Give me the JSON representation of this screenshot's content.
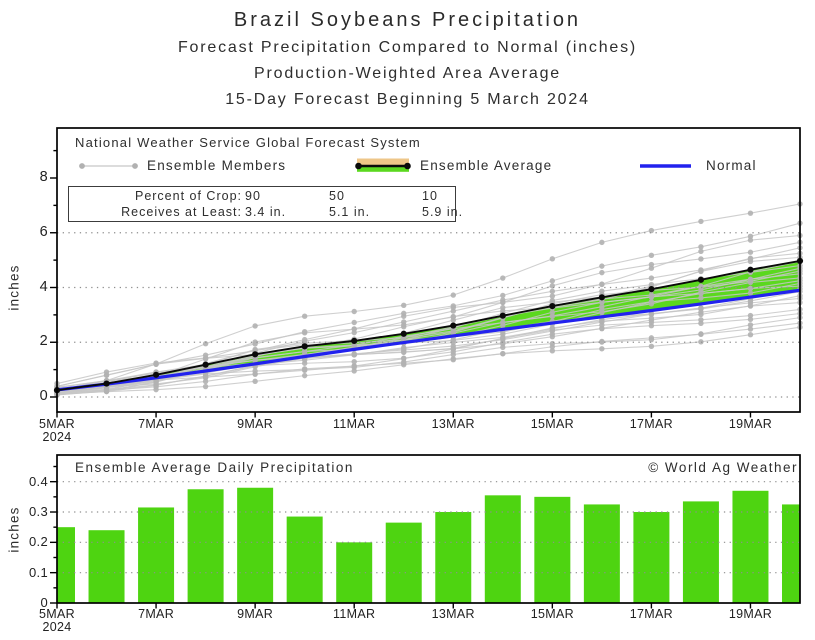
{
  "header": {
    "title": "Brazil Soybeans Precipitation",
    "subtitle1": "Forecast Precipitation Compared to Normal (inches)",
    "subtitle2": "Production-Weighted Area Average",
    "subtitle3": "15-Day Forecast Beginning 5 March 2024"
  },
  "top_chart": {
    "legend": {
      "source": "National Weather Service Global Forecast System",
      "members_label": "Ensemble Members",
      "average_label": "Ensemble Average",
      "normal_label": "Normal"
    },
    "crop_box": {
      "row1_label": "Percent of Crop:",
      "row1_values": [
        "90",
        "50",
        "10"
      ],
      "row2_label": "Receives at Least:",
      "row2_values": [
        "3.4 in.",
        "5.1 in.",
        "5.9 in."
      ]
    },
    "ylabel": "inches"
  },
  "bottom_chart": {
    "title": "Ensemble Average Daily Precipitation",
    "copyright": "© World Ag Weather",
    "ylabel": "inches"
  },
  "colors": {
    "bar_green": "#4ed411",
    "band_green": "#5bd81f",
    "normal_blue": "#2222ee",
    "average_black": "#0a0a0a",
    "member_line_gray": "#c7c7c7",
    "member_dot_gray": "#b1b1b1",
    "legend_tan": "#eec688",
    "grid_gray": "#8f8f8f",
    "axis_black": "#000000"
  },
  "chart_data": [
    {
      "type": "line",
      "title": "Forecast cumulative precipitation compared to normal (inches)",
      "x": [
        "5MAR",
        "6MAR",
        "7MAR",
        "8MAR",
        "9MAR",
        "10MAR",
        "11MAR",
        "12MAR",
        "13MAR",
        "14MAR",
        "15MAR",
        "16MAR",
        "17MAR",
        "18MAR",
        "19MAR",
        "20MAR"
      ],
      "x_tick_labels": [
        "5MAR",
        "7MAR",
        "9MAR",
        "11MAR",
        "13MAR",
        "15MAR",
        "17MAR",
        "19MAR"
      ],
      "x_tick_year": "2024",
      "ylabel": "inches",
      "ylim": [
        -0.55,
        9.8
      ],
      "yticks": [
        0,
        2,
        4,
        6,
        8
      ],
      "yticks_minor": [
        1,
        3,
        5,
        7,
        9
      ],
      "grid": "dotted horizontal at 0,2,4,6",
      "grid_values": [
        0,
        2,
        4,
        6
      ],
      "legend_position": "top-inside",
      "series": [
        {
          "name": "Ensemble Average",
          "values": [
            0.25,
            0.49,
            0.81,
            1.18,
            1.56,
            1.85,
            2.05,
            2.31,
            2.61,
            2.97,
            3.32,
            3.64,
            3.94,
            4.28,
            4.65,
            4.97
          ]
        },
        {
          "name": "Normal",
          "values": [
            0.26,
            0.47,
            0.7,
            0.95,
            1.21,
            1.48,
            1.74,
            1.99,
            2.23,
            2.47,
            2.7,
            2.93,
            3.16,
            3.4,
            3.65,
            3.9
          ]
        }
      ],
      "ensemble_members": {
        "count": 26,
        "start_value": 0.25,
        "final_values": [
          2.55,
          2.7,
          2.9,
          3.05,
          3.2,
          3.45,
          3.6,
          3.7,
          3.85,
          3.95,
          4.05,
          4.15,
          4.25,
          4.35,
          4.5,
          4.6,
          4.7,
          4.8,
          4.95,
          5.1,
          5.25,
          5.45,
          5.65,
          5.9,
          6.35,
          7.05
        ]
      }
    },
    {
      "type": "bar",
      "title": "Ensemble Average Daily Precipitation",
      "categories": [
        "5MAR",
        "6MAR",
        "7MAR",
        "8MAR",
        "9MAR",
        "10MAR",
        "11MAR",
        "12MAR",
        "13MAR",
        "14MAR",
        "15MAR",
        "16MAR",
        "17MAR",
        "18MAR",
        "19MAR",
        "20MAR"
      ],
      "values": [
        0.25,
        0.24,
        0.315,
        0.375,
        0.38,
        0.285,
        0.2,
        0.265,
        0.3,
        0.355,
        0.35,
        0.325,
        0.3,
        0.335,
        0.37,
        0.325
      ],
      "x_tick_labels": [
        "5MAR",
        "7MAR",
        "9MAR",
        "11MAR",
        "13MAR",
        "15MAR",
        "17MAR",
        "19MAR"
      ],
      "x_tick_year": "2024",
      "ylabel": "inches",
      "ylim": [
        0,
        0.49
      ],
      "yticks": [
        0,
        0.1,
        0.2,
        0.3,
        0.4
      ],
      "yticks_minor": [
        0.05,
        0.15,
        0.25,
        0.35,
        0.45
      ],
      "grid_values": [
        0.1,
        0.2,
        0.3,
        0.4
      ]
    }
  ]
}
